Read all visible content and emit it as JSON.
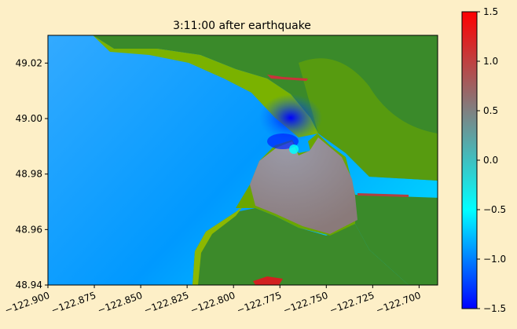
{
  "chart_data": {
    "type": "heatmap",
    "title": "3:11:00 after earthquake",
    "xlabel": "",
    "ylabel": "",
    "xlim": [
      -122.9,
      -122.69
    ],
    "ylim": [
      48.94,
      49.03
    ],
    "x_ticks": [
      -122.9,
      -122.875,
      -122.85,
      -122.825,
      -122.8,
      -122.775,
      -122.75,
      -122.725,
      -122.7
    ],
    "x_tick_labels": [
      "−122.900",
      "−122.875",
      "−122.850",
      "−122.825",
      "−122.800",
      "−122.775",
      "−122.750",
      "−122.725",
      "−122.700"
    ],
    "y_ticks": [
      48.94,
      48.96,
      48.98,
      49.0,
      49.02
    ],
    "y_tick_labels": [
      "48.94",
      "48.96",
      "48.98",
      "49.00",
      "49.02"
    ],
    "colorbar": {
      "range": [
        -1.5,
        1.5
      ],
      "ticks": [
        1.5,
        1.0,
        0.5,
        0.0,
        -0.5,
        -1.0,
        -1.5
      ],
      "tick_labels": [
        "1.5",
        "1.0",
        "0.5",
        "0.0",
        "−0.5",
        "−1.0",
        "−1.5"
      ],
      "colormap_stops": [
        "#0000ff",
        "#00ffff",
        "#808080",
        "#ff0000"
      ]
    },
    "land_colors": [
      "#2e7d32",
      "#3c8a28",
      "#6aa600",
      "#8cb800"
    ],
    "grid": false
  }
}
